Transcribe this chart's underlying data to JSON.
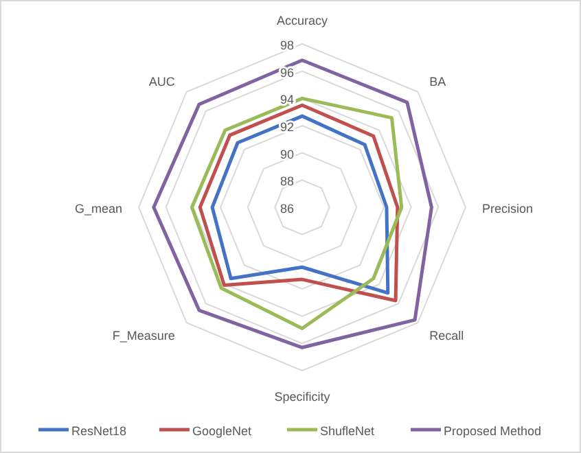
{
  "chart_data": {
    "type": "radar",
    "categories": [
      "Accuracy",
      "BA",
      "Precision",
      "Recall",
      "Specificity",
      "F_Measure",
      "G_mean",
      "AUC"
    ],
    "ylim": [
      86,
      98
    ],
    "yticks": [
      86,
      88,
      90,
      92,
      94,
      96,
      98
    ],
    "grid": true,
    "legend": "bottom",
    "line_style": "solid",
    "marker": "none",
    "series": [
      {
        "name": "ResNet18",
        "color": "#4472c4",
        "values": [
          92.7,
          92.5,
          92.2,
          94.9,
          90.4,
          93.4,
          92.6,
          92.7
        ]
      },
      {
        "name": "GoogleNet",
        "color": "#c0504d",
        "values": [
          93.5,
          93.4,
          93.0,
          95.7,
          91.3,
          94.1,
          93.5,
          93.5
        ]
      },
      {
        "name": "ShufleNet",
        "color": "#9bbb59",
        "values": [
          94.0,
          95.3,
          93.3,
          93.4,
          94.9,
          94.4,
          94.1,
          94.0
        ]
      },
      {
        "name": "Proposed Method",
        "color": "#8064a2",
        "values": [
          96.8,
          96.9,
          95.5,
          97.7,
          96.3,
          96.7,
          96.9,
          96.7
        ]
      }
    ]
  }
}
